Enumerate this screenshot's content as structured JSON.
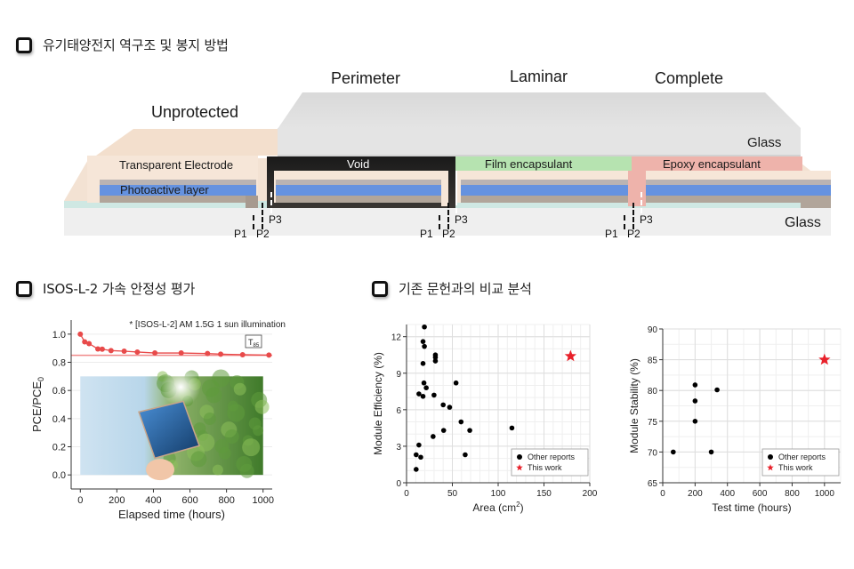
{
  "sections": {
    "structure": {
      "title": "유기태양전지 역구조 및 봉지 방법"
    },
    "stability": {
      "title": "ISOS-L-2 가속 안정성 평가"
    },
    "comparison": {
      "title": "기존 문헌과의 비교 분석"
    }
  },
  "diagram": {
    "categories": [
      "Unprotected",
      "Perimeter",
      "Laminar",
      "Complete"
    ],
    "layers": {
      "transparent_electrode": "Transparent Electrode",
      "photoactive": "Photoactive layer",
      "void": "Void",
      "film": "Film encapsulant",
      "epoxy": "Epoxy encapsulant",
      "top_glass": "Glass",
      "bottom_glass": "Glass"
    },
    "scribes": {
      "p1": "P1",
      "p2": "P2",
      "p3": "P3"
    },
    "colors": {
      "electrode": "#f6e6d8",
      "photoactive": "#6592e0",
      "glass": "#e6e6e6",
      "film": "#b6e3b0",
      "epoxy": "#eeb3ab",
      "ito": "#cfe9e4",
      "void": "#111111"
    }
  },
  "chart_data": [
    {
      "type": "line",
      "title": "",
      "annotation": "* [ISOS-L-2] AM 1.5G 1 sun illumination",
      "marker_label": "T85",
      "xlabel": "Elapsed time (hours)",
      "ylabel": "PCE/PCE0",
      "xlim": [
        -50,
        1050
      ],
      "ylim": [
        -0.1,
        1.1
      ],
      "xticks": [
        0,
        200,
        400,
        600,
        800,
        1000
      ],
      "yticks": [
        0.0,
        0.2,
        0.4,
        0.6,
        0.8,
        1.0
      ],
      "grid": true,
      "reference_line": 0.85,
      "series": [
        {
          "name": "PCE/PCE0",
          "color": "#e84a4a",
          "x": [
            0,
            24,
            48,
            96,
            120,
            168,
            240,
            312,
            408,
            552,
            696,
            768,
            888,
            1032
          ],
          "y": [
            1.0,
            0.945,
            0.933,
            0.895,
            0.893,
            0.883,
            0.879,
            0.873,
            0.866,
            0.866,
            0.862,
            0.858,
            0.854,
            0.851
          ]
        }
      ],
      "inset_image": "hand holding semi-transparent blue solar module against sky and trees"
    },
    {
      "type": "scatter",
      "xlabel": "Area (cm2)",
      "ylabel": "Module Efficiency (%)",
      "xlim": [
        0,
        200
      ],
      "ylim": [
        0,
        13
      ],
      "xticks": [
        0,
        50,
        100,
        150,
        200
      ],
      "yticks": [
        0,
        3,
        6,
        9,
        12
      ],
      "grid": true,
      "legend": [
        "Other reports",
        "This work"
      ],
      "legend_position": "lower right",
      "series": [
        {
          "name": "Other reports",
          "color": "#000000",
          "marker": "circle",
          "points": [
            [
              19.5,
              12.8
            ],
            [
              18,
              11.6
            ],
            [
              19.5,
              11.2
            ],
            [
              31.5,
              10.5
            ],
            [
              31.5,
              10.3
            ],
            [
              31.5,
              10.0
            ],
            [
              18,
              9.8
            ],
            [
              19,
              8.2
            ],
            [
              54,
              8.2
            ],
            [
              21.5,
              7.8
            ],
            [
              13.5,
              7.3
            ],
            [
              18,
              7.1
            ],
            [
              30,
              7.2
            ],
            [
              40,
              6.4
            ],
            [
              47,
              6.2
            ],
            [
              59.5,
              5.0
            ],
            [
              40.5,
              4.3
            ],
            [
              69,
              4.3
            ],
            [
              115,
              4.5
            ],
            [
              29,
              3.8
            ],
            [
              13.5,
              3.1
            ],
            [
              10.5,
              2.3
            ],
            [
              15.5,
              2.1
            ],
            [
              64,
              2.3
            ],
            [
              10.5,
              1.1
            ]
          ]
        },
        {
          "name": "This work",
          "color": "#e8202a",
          "marker": "star",
          "points": [
            [
              179,
              10.4
            ]
          ]
        }
      ]
    },
    {
      "type": "scatter",
      "xlabel": "Test time (hours)",
      "ylabel": "Module Stability (%)",
      "xlim": [
        0,
        1100
      ],
      "ylim": [
        65,
        90
      ],
      "xticks": [
        0,
        200,
        400,
        600,
        800,
        1000
      ],
      "yticks": [
        65,
        70,
        75,
        80,
        85,
        90
      ],
      "grid": true,
      "legend": [
        "Other reports",
        "This work"
      ],
      "legend_position": "lower right",
      "series": [
        {
          "name": "Other reports",
          "color": "#000000",
          "marker": "circle",
          "points": [
            [
              65,
              70
            ],
            [
              200,
              80.9
            ],
            [
              200,
              78.3
            ],
            [
              200,
              75
            ],
            [
              336,
              80.1
            ],
            [
              300,
              70
            ]
          ]
        },
        {
          "name": "This work",
          "color": "#e8202a",
          "marker": "star",
          "points": [
            [
              1000,
              85
            ]
          ]
        }
      ]
    }
  ]
}
